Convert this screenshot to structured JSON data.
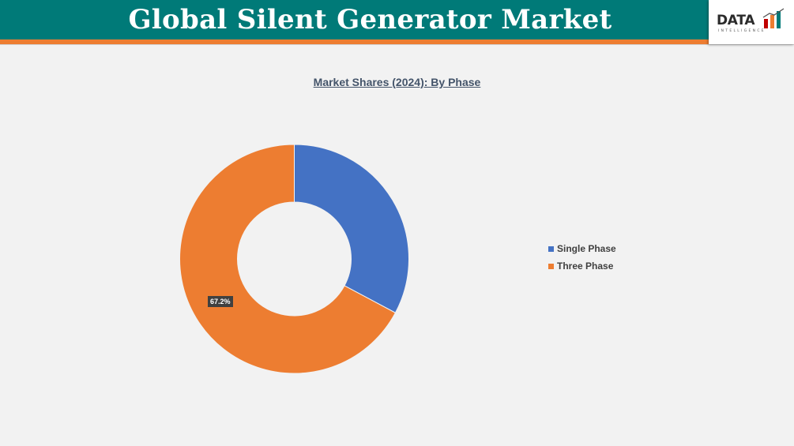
{
  "header": {
    "title": "Global Silent Generator Market",
    "bg_color": "#007a78",
    "stripe_color": "#ed7d31"
  },
  "logo": {
    "text": "DATA",
    "subtext": "INTELLIGENCE",
    "bar_colors": [
      "#c00000",
      "#ed7d31",
      "#007a78"
    ]
  },
  "chart_data": {
    "type": "pie",
    "title": "Market Shares (2024): By Phase",
    "donut": true,
    "legend_position": "right",
    "categories": [
      "Single Phase",
      "Three Phase"
    ],
    "values": [
      32.8,
      67.2
    ],
    "colors": [
      "#4472c4",
      "#ed7d31"
    ],
    "data_labels": [
      "",
      "67.2%"
    ]
  }
}
